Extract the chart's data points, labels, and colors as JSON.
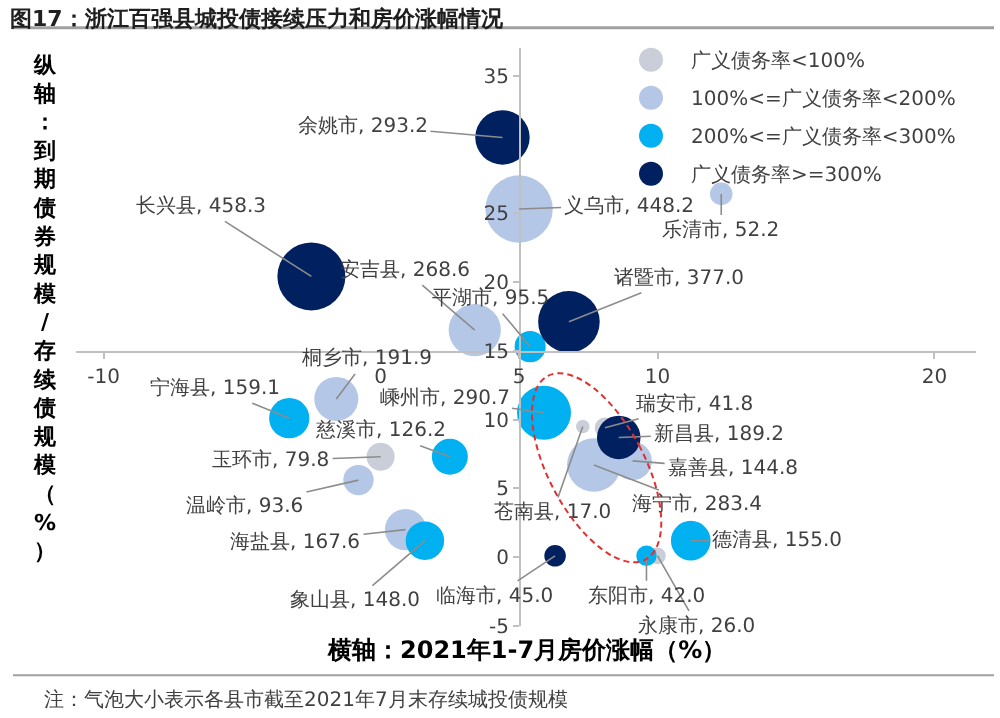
{
  "chart_data": {
    "type": "bubble",
    "title": "图17：浙江百强县城投债接续压力和房价涨幅情况",
    "xlabel": "横轴：2021年1-7月房价涨幅（%）",
    "ylabel": "纵轴：到期债券规模/存续债规模（%）",
    "xlim": [
      -11,
      21.5
    ],
    "ylim": [
      -5,
      37
    ],
    "xticks": [
      -10,
      0,
      5,
      10,
      20
    ],
    "yticks": [
      -5,
      0,
      5,
      10,
      15,
      20,
      25,
      35
    ],
    "grid": false,
    "legend": "top right",
    "marker": "circle",
    "series": [
      {
        "name": "广义债务率<100%",
        "color": "#c9ced8",
        "x": [
          0.0,
          7.3,
          8.1,
          10.0
        ],
        "values": [
          7.3,
          9.5,
          9.4,
          0.1
        ],
        "sizes": [
          0.17,
          0.04,
          0.09,
          0.06
        ]
      },
      {
        "name": "100%<=广义债务率<200%",
        "color": "#b4c7e7",
        "x": [
          5.0,
          12.3,
          3.4,
          -1.6,
          -0.8,
          0.9,
          7.7,
          9.1
        ],
        "values": [
          25.3,
          26.4,
          16.5,
          11.5,
          5.6,
          2.0,
          6.7,
          7.0
        ],
        "sizes": [
          0.98,
          0.11,
          0.59,
          0.42,
          0.2,
          0.37,
          0.62,
          0.32
        ]
      },
      {
        "name": "200%<=广义债务率<300%",
        "color": "#00b0f0",
        "x": [
          5.4,
          -3.3,
          2.5,
          1.6,
          5.9,
          9.6,
          11.2
        ],
        "values": [
          15.3,
          10.1,
          7.3,
          1.2,
          10.5,
          0.1,
          1.2
        ],
        "sizes": [
          0.21,
          0.35,
          0.28,
          0.32,
          0.63,
          0.09,
          0.34
        ]
      },
      {
        "name": "广义债务率>=300%",
        "color": "#002060",
        "x": [
          4.4,
          -2.5,
          6.8,
          8.6,
          6.3
        ],
        "values": [
          30.5,
          20.4,
          17.1,
          8.7,
          0.1
        ],
        "sizes": [
          0.64,
          1,
          0.82,
          0.41,
          0.1
        ]
      }
    ],
    "annotations": [
      {
        "text": "玉环市, 79.8",
        "x": 0.0,
        "y": 7.3
      },
      {
        "text": "苍南县, 17.0",
        "x": 7.3,
        "y": 9.5
      },
      {
        "text": "瑞安市, 41.8",
        "x": 8.1,
        "y": 9.4
      },
      {
        "text": "永康市, 26.0",
        "x": 10.0,
        "y": 0.1
      },
      {
        "text": "义乌市, 448.2",
        "x": 5.0,
        "y": 25.3
      },
      {
        "text": "乐清市, 52.2",
        "x": 12.3,
        "y": 26.4
      },
      {
        "text": "安吉县, 268.6",
        "x": 3.4,
        "y": 16.5
      },
      {
        "text": "桐乡市, 191.9",
        "x": -1.6,
        "y": 11.5
      },
      {
        "text": "温岭市, 93.6",
        "x": -0.8,
        "y": 5.6
      },
      {
        "text": "海盐县, 167.6",
        "x": 0.9,
        "y": 2.0
      },
      {
        "text": "海宁市, 283.4",
        "x": 7.7,
        "y": 6.7
      },
      {
        "text": "嘉善县, 144.8",
        "x": 9.1,
        "y": 7.0
      },
      {
        "text": "平湖市, 95.5",
        "x": 5.4,
        "y": 15.3
      },
      {
        "text": "宁海县, 159.1",
        "x": -3.3,
        "y": 10.1
      },
      {
        "text": "慈溪市, 126.2",
        "x": 2.5,
        "y": 7.3
      },
      {
        "text": "象山县, 148.0",
        "x": 1.6,
        "y": 1.2
      },
      {
        "text": "嵊州市, 290.7",
        "x": 5.9,
        "y": 10.5
      },
      {
        "text": "东阳市, 42.0",
        "x": 9.6,
        "y": 0.1
      },
      {
        "text": "德清县, 155.0",
        "x": 11.2,
        "y": 1.2
      },
      {
        "text": "余姚市, 293.2",
        "x": 4.4,
        "y": 30.5
      },
      {
        "text": "长兴县, 458.3",
        "x": -2.5,
        "y": 20.4
      },
      {
        "text": "诸暨市, 377.0",
        "x": 6.8,
        "y": 17.1
      },
      {
        "text": "新昌县, 189.2",
        "x": 8.6,
        "y": 8.7
      },
      {
        "text": "临海市, 45.0",
        "x": 6.3,
        "y": 0.1
      },
      "注：气泡大小表示各县市截至2021年7月末存续城投债规模"
    ]
  }
}
